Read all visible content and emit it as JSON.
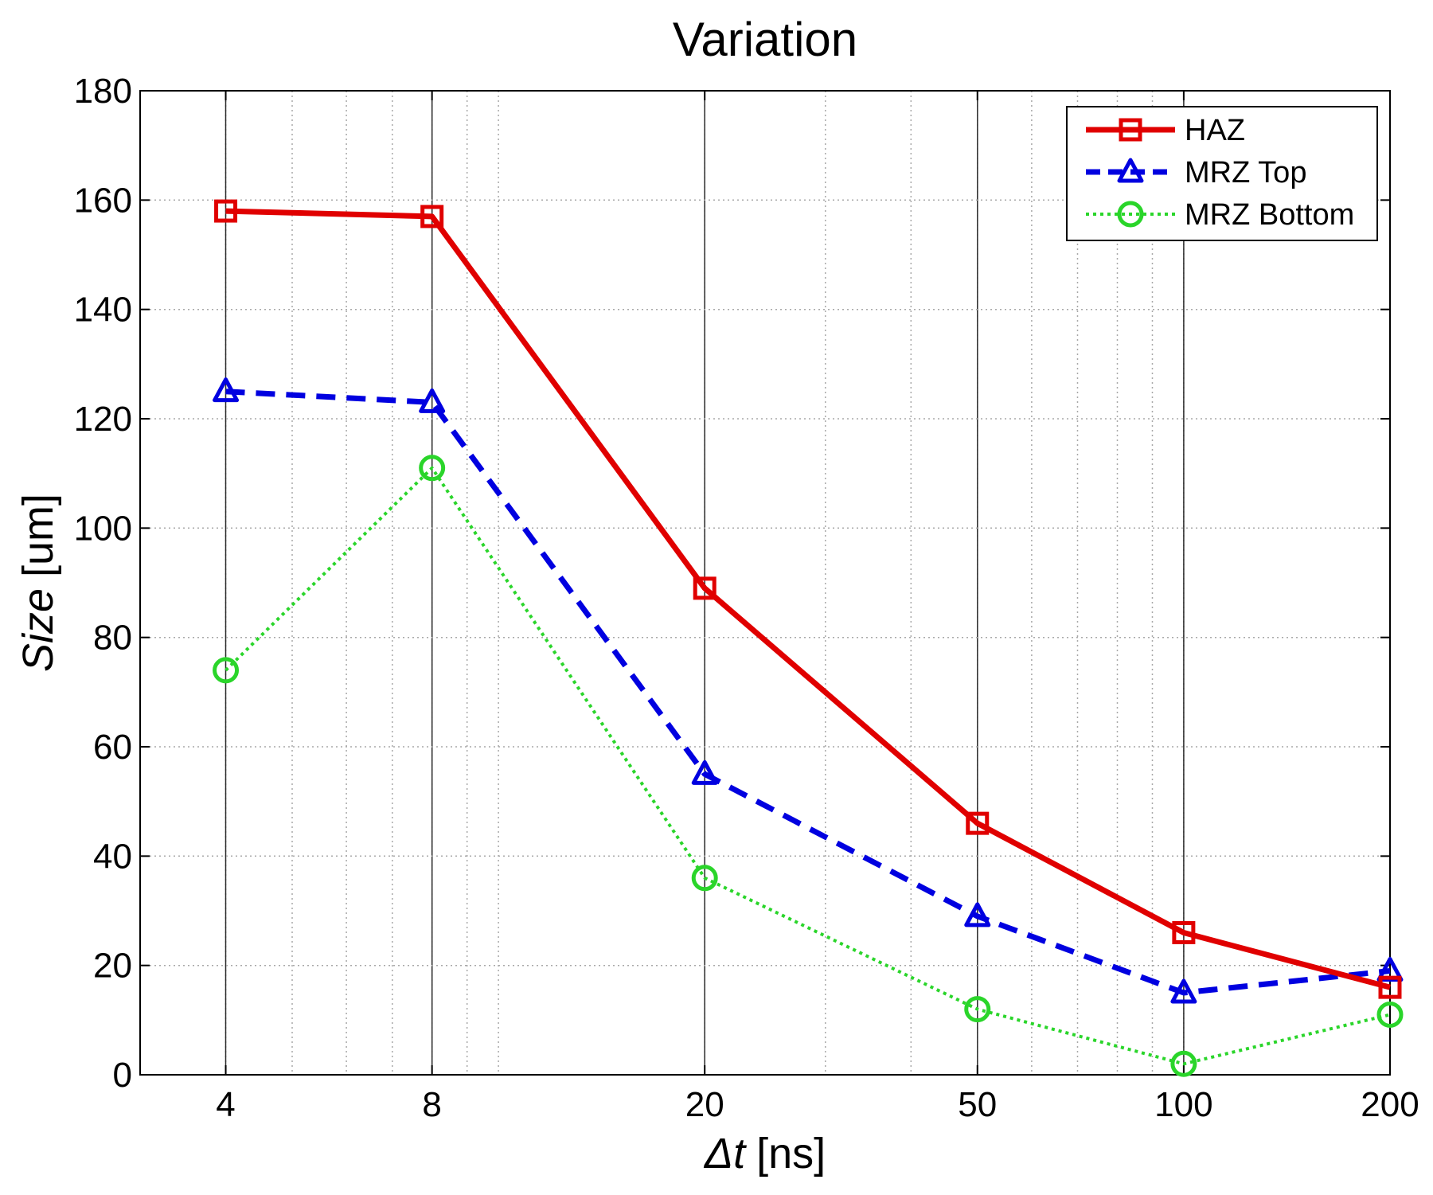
{
  "chart_data": {
    "type": "line",
    "title": "Variation",
    "xlabel": {
      "symbol": "Δt",
      "unit": "[ns]"
    },
    "ylabel": {
      "symbol": "Size",
      "unit": "[um]"
    },
    "x_scale": "log",
    "xlim": [
      3,
      200
    ],
    "ylim": [
      0,
      180
    ],
    "grid": true,
    "legend_position": "top-right",
    "x": [
      4,
      8,
      20,
      50,
      100,
      200
    ],
    "x_tick_labels": [
      "4",
      "8",
      "20",
      "50",
      "100",
      "200"
    ],
    "y_ticks": [
      0,
      20,
      40,
      60,
      80,
      100,
      120,
      140,
      160,
      180
    ],
    "y_tick_labels": [
      "0",
      "20",
      "40",
      "60",
      "80",
      "100",
      "120",
      "140",
      "160",
      "180"
    ],
    "series": [
      {
        "name": "HAZ",
        "color": "#e00000",
        "marker": "square",
        "line_style": "solid",
        "values": [
          158,
          157,
          89,
          46,
          26,
          16
        ]
      },
      {
        "name": "MRZ Top",
        "color": "#0000e0",
        "marker": "triangle",
        "line_style": "dashed",
        "values": [
          125,
          123,
          55,
          29,
          15,
          19
        ]
      },
      {
        "name": "MRZ Bottom",
        "color": "#2ad52a",
        "marker": "circle",
        "line_style": "dotted",
        "values": [
          74,
          111,
          36,
          12,
          2,
          11
        ]
      }
    ]
  }
}
